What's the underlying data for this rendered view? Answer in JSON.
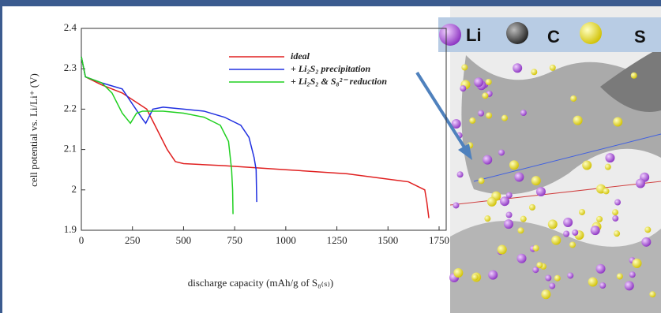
{
  "chart_data": {
    "type": "line",
    "xlabel": "discharge capacity (mAh/g of S₈₍ₛ₎)",
    "ylabel": "cell potential vs. Li/Li⁺ (V)",
    "xlim": [
      0,
      1750
    ],
    "xticks": [
      0,
      250,
      500,
      750,
      1000,
      1250,
      1500,
      1750
    ],
    "ylim": [
      1.9,
      2.4
    ],
    "yticks": [
      1.9,
      2,
      2.1,
      2.2,
      2.3,
      2.4
    ],
    "legend": "upper right",
    "series": [
      {
        "name": "ideal",
        "color": "#e02020",
        "x": [
          0,
          20,
          100,
          200,
          320,
          370,
          420,
          460,
          500,
          700,
          1000,
          1300,
          1600,
          1680,
          1690,
          1700
        ],
        "values": [
          2.33,
          2.28,
          2.26,
          2.24,
          2.2,
          2.15,
          2.1,
          2.07,
          2.065,
          2.06,
          2.05,
          2.04,
          2.02,
          2.0,
          1.97,
          1.93
        ]
      },
      {
        "name": "+ Li₂S₂ precipitation",
        "color": "#2030e0",
        "x": [
          0,
          20,
          100,
          200,
          300,
          315,
          350,
          400,
          500,
          600,
          700,
          780,
          820,
          845,
          855,
          858
        ],
        "values": [
          2.33,
          2.28,
          2.265,
          2.25,
          2.175,
          2.165,
          2.2,
          2.205,
          2.2,
          2.195,
          2.18,
          2.16,
          2.13,
          2.08,
          2.05,
          1.97
        ]
      },
      {
        "name": "+ Li₂S₂ & S₈²⁻ reduction",
        "color": "#20d020",
        "x": [
          0,
          20,
          100,
          150,
          200,
          240,
          270,
          300,
          400,
          500,
          600,
          680,
          720,
          735,
          740,
          742
        ],
        "values": [
          2.33,
          2.28,
          2.265,
          2.24,
          2.19,
          2.165,
          2.19,
          2.195,
          2.195,
          2.19,
          2.18,
          2.16,
          2.12,
          2.05,
          2.0,
          1.94
        ]
      }
    ]
  },
  "atom_legend": [
    "Li",
    "C",
    "S"
  ]
}
